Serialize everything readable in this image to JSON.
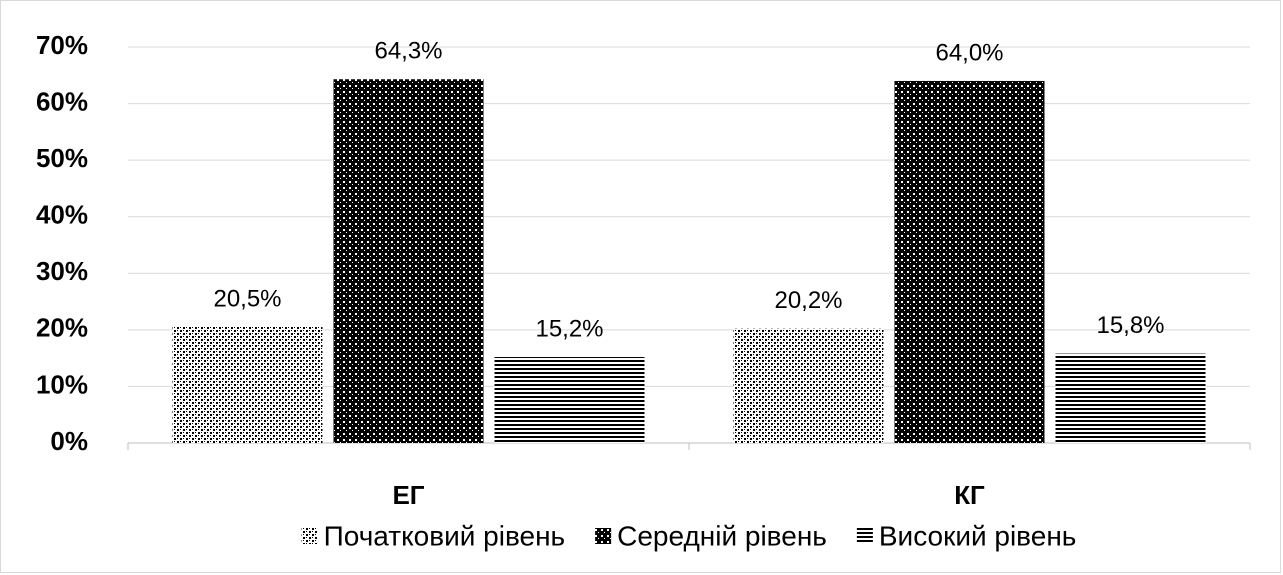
{
  "chart_data": {
    "type": "bar",
    "categories": [
      "ЕГ",
      "КГ"
    ],
    "series": [
      {
        "name": "Початковий рівень",
        "values": [
          20.5,
          20.2
        ],
        "value_labels": [
          "20,5%",
          "20,2%"
        ]
      },
      {
        "name": "Середній рівень",
        "values": [
          64.3,
          64.0
        ],
        "value_labels": [
          "64,3%",
          "64,0%"
        ]
      },
      {
        "name": "Високий рівень",
        "values": [
          15.2,
          15.8
        ],
        "value_labels": [
          "15,2%",
          "15,8%"
        ]
      }
    ],
    "ylim": [
      0,
      70
    ],
    "yticks": [
      {
        "value": 0,
        "label": "0%"
      },
      {
        "value": 10,
        "label": "10%"
      },
      {
        "value": 20,
        "label": "20%"
      },
      {
        "value": 30,
        "label": "30%"
      },
      {
        "value": 40,
        "label": "40%"
      },
      {
        "value": 50,
        "label": "50%"
      },
      {
        "value": 60,
        "label": "60%"
      },
      {
        "value": 70,
        "label": "70%"
      }
    ],
    "grid": true
  }
}
